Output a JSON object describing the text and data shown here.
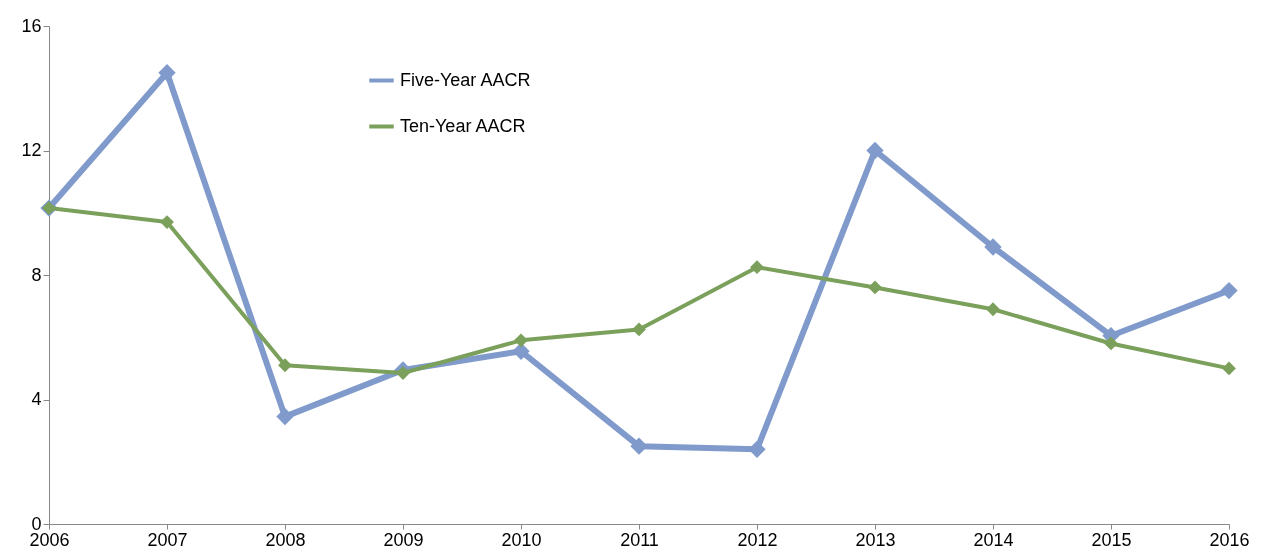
{
  "chart_data": {
    "type": "line",
    "x": [
      2006,
      2007,
      2008,
      2009,
      2010,
      2011,
      2012,
      2013,
      2014,
      2015,
      2016
    ],
    "series": [
      {
        "name": "Five-Year AACR",
        "color": "#7f9acb",
        "values": [
          10.15,
          14.5,
          3.45,
          4.95,
          5.55,
          2.5,
          2.4,
          12.0,
          8.9,
          6.05,
          7.5
        ]
      },
      {
        "name": "Ten-Year AACR",
        "color": "#7ba05b",
        "values": [
          10.15,
          9.7,
          5.1,
          4.85,
          5.9,
          6.25,
          8.25,
          7.6,
          6.9,
          5.8,
          5.0
        ]
      }
    ],
    "xlim": [
      2006,
      2016
    ],
    "xticks": [
      2006,
      2007,
      2008,
      2009,
      2010,
      2011,
      2012,
      2013,
      2014,
      2015,
      2016
    ],
    "ylim": [
      0,
      16
    ],
    "yticks": [
      0,
      4,
      8,
      12,
      16
    ],
    "grid": false,
    "legend": "top",
    "marker": "diamond",
    "line_style": "solid"
  }
}
